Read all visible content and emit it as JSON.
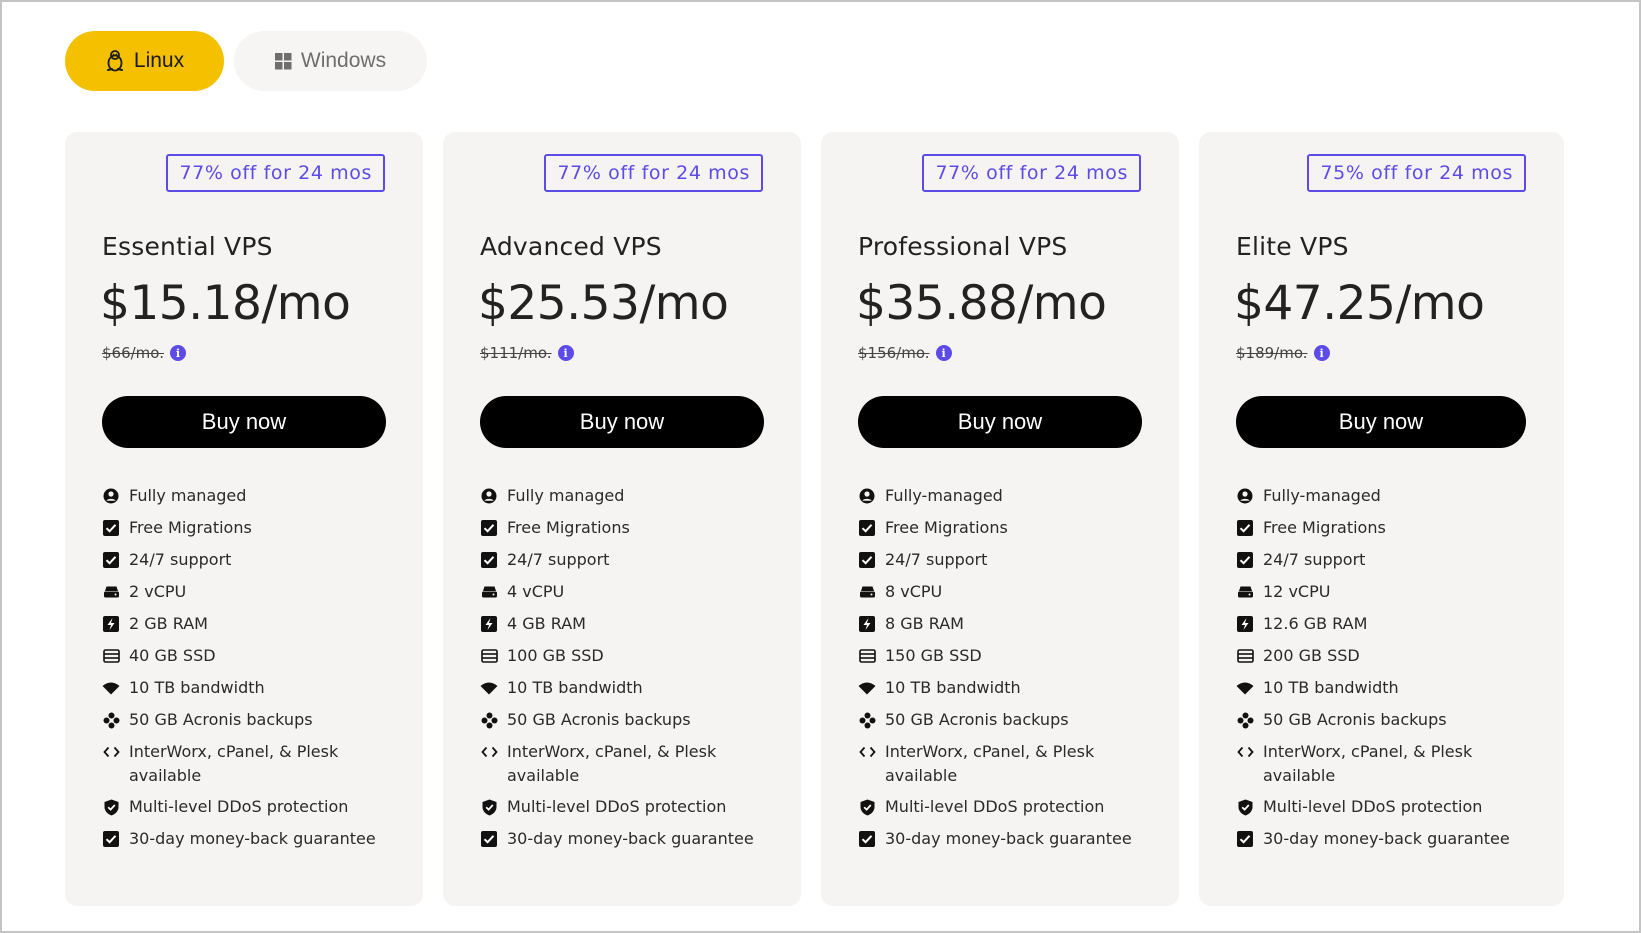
{
  "os_toggle": {
    "linux_label": "Linux",
    "windows_label": "Windows",
    "selected": "Linux",
    "accent_color": "#f4c000"
  },
  "colors": {
    "badge": "#5c4be6",
    "button_bg": "#000000",
    "card_bg": "#f5f4f2"
  },
  "plans": [
    {
      "badge": "77% off for 24 mos",
      "name": "Essential VPS",
      "price": "$15.18/mo",
      "old_price": "$66/mo.",
      "buy_label": "Buy now",
      "features": [
        {
          "icon": "user-circle-icon",
          "text": "Fully managed"
        },
        {
          "icon": "checkbox-icon",
          "text": "Free Migrations"
        },
        {
          "icon": "checkbox-icon",
          "text": "24/7 support"
        },
        {
          "icon": "cpu-icon",
          "text": "2 vCPU"
        },
        {
          "icon": "ram-bolt-icon",
          "text": "2 GB RAM"
        },
        {
          "icon": "storage-icon",
          "text": "40 GB SSD"
        },
        {
          "icon": "wifi-icon",
          "text": "10 TB bandwidth"
        },
        {
          "icon": "backup-icon",
          "text": "50 GB Acronis backups"
        },
        {
          "icon": "code-icon",
          "text": "InterWorx, cPanel, & Plesk available"
        },
        {
          "icon": "shield-icon",
          "text": "Multi-level DDoS protection"
        },
        {
          "icon": "checkbox-icon",
          "text": "30-day money-back guarantee"
        }
      ]
    },
    {
      "badge": "77% off for 24 mos",
      "name": "Advanced VPS",
      "price": "$25.53/mo",
      "old_price": "$111/mo.",
      "buy_label": "Buy now",
      "features": [
        {
          "icon": "user-circle-icon",
          "text": "Fully managed"
        },
        {
          "icon": "checkbox-icon",
          "text": "Free Migrations"
        },
        {
          "icon": "checkbox-icon",
          "text": "24/7 support"
        },
        {
          "icon": "cpu-icon",
          "text": "4 vCPU"
        },
        {
          "icon": "ram-bolt-icon",
          "text": "4 GB RAM"
        },
        {
          "icon": "storage-icon",
          "text": "100 GB SSD"
        },
        {
          "icon": "wifi-icon",
          "text": "10 TB bandwidth"
        },
        {
          "icon": "backup-icon",
          "text": "50 GB Acronis backups"
        },
        {
          "icon": "code-icon",
          "text": "InterWorx, cPanel, & Plesk available"
        },
        {
          "icon": "shield-icon",
          "text": "Multi-level DDoS protection"
        },
        {
          "icon": "checkbox-icon",
          "text": "30-day money-back guarantee"
        }
      ]
    },
    {
      "badge": "77% off for 24 mos",
      "name": "Professional VPS",
      "price": "$35.88/mo",
      "old_price": "$156/mo.",
      "buy_label": "Buy now",
      "features": [
        {
          "icon": "user-circle-icon",
          "text": "Fully-managed"
        },
        {
          "icon": "checkbox-icon",
          "text": "Free Migrations"
        },
        {
          "icon": "checkbox-icon",
          "text": "24/7 support"
        },
        {
          "icon": "cpu-icon",
          "text": "8 vCPU"
        },
        {
          "icon": "ram-bolt-icon",
          "text": "8 GB RAM"
        },
        {
          "icon": "storage-icon",
          "text": "150 GB SSD"
        },
        {
          "icon": "wifi-icon",
          "text": "10 TB bandwidth"
        },
        {
          "icon": "backup-icon",
          "text": "50 GB Acronis backups"
        },
        {
          "icon": "code-icon",
          "text": "InterWorx, cPanel, & Plesk available"
        },
        {
          "icon": "shield-icon",
          "text": "Multi-level DDoS protection"
        },
        {
          "icon": "checkbox-icon",
          "text": "30-day money-back guarantee"
        }
      ]
    },
    {
      "badge": "75% off for 24 mos",
      "name": "Elite VPS",
      "price": "$47.25/mo",
      "old_price": "$189/mo.",
      "buy_label": "Buy now",
      "features": [
        {
          "icon": "user-circle-icon",
          "text": "Fully-managed"
        },
        {
          "icon": "checkbox-icon",
          "text": "Free Migrations"
        },
        {
          "icon": "checkbox-icon",
          "text": "24/7 support"
        },
        {
          "icon": "cpu-icon",
          "text": "12 vCPU"
        },
        {
          "icon": "ram-bolt-icon",
          "text": "12.6 GB RAM"
        },
        {
          "icon": "storage-icon",
          "text": "200 GB SSD"
        },
        {
          "icon": "wifi-icon",
          "text": "10 TB bandwidth"
        },
        {
          "icon": "backup-icon",
          "text": "50 GB Acronis backups"
        },
        {
          "icon": "code-icon",
          "text": "InterWorx, cPanel, & Plesk available"
        },
        {
          "icon": "shield-icon",
          "text": "Multi-level DDoS protection"
        },
        {
          "icon": "checkbox-icon",
          "text": "30-day money-back guarantee"
        }
      ]
    }
  ]
}
